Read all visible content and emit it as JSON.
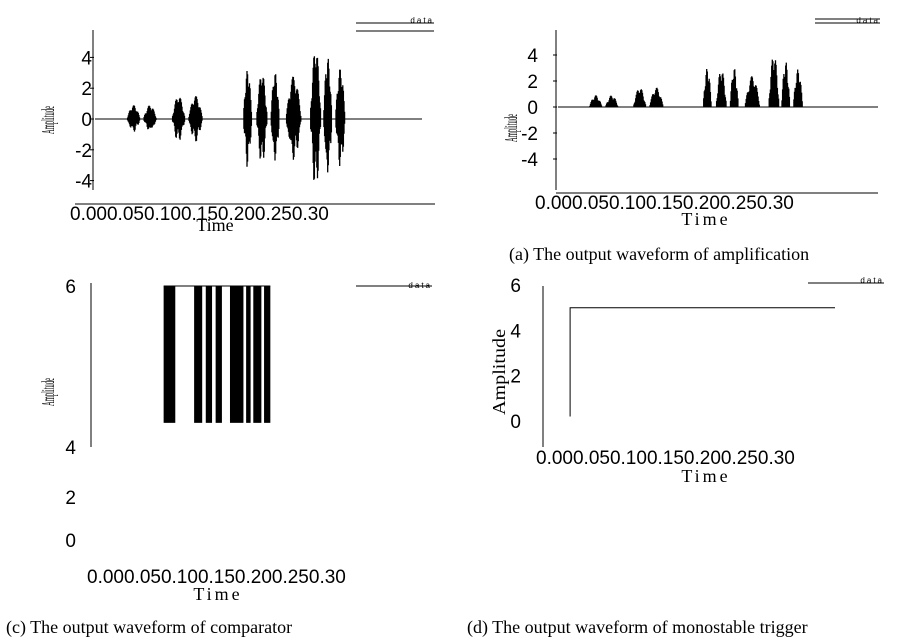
{
  "chart_data": [
    {
      "id": "a-left",
      "type": "line",
      "xlabel": "Time",
      "ylabel": "Amplitude",
      "xtick_text": "0.000.050.100.150.200.250.30",
      "xlim": [
        0,
        0.3
      ],
      "ylim": [
        -5,
        5
      ],
      "yticks": [
        4,
        2,
        0,
        -2,
        -4
      ],
      "ytick_labels": [
        "4",
        "2",
        "0",
        "-2",
        "-4"
      ],
      "legend": "data",
      "legend_position": "top-right",
      "series": [
        {
          "style": "bipolar-bursts",
          "bursts": [
            {
              "x": [
                0.031,
                0.043
              ],
              "amp": 0.9
            },
            {
              "x": [
                0.046,
                0.058
              ],
              "amp": 0.9
            },
            {
              "x": [
                0.072,
                0.084
              ],
              "amp": 1.5
            },
            {
              "x": [
                0.087,
                0.1
              ],
              "amp": 1.5
            },
            {
              "x": [
                0.137,
                0.145
              ],
              "amp": 3.2
            },
            {
              "x": [
                0.149,
                0.159
              ],
              "amp": 3.0
            },
            {
              "x": [
                0.162,
                0.17
              ],
              "amp": 3.0
            },
            {
              "x": [
                0.176,
                0.19
              ],
              "amp": 2.8
            },
            {
              "x": [
                0.198,
                0.208
              ],
              "amp": 4.6
            },
            {
              "x": [
                0.21,
                0.218
              ],
              "amp": 4.0
            },
            {
              "x": [
                0.221,
                0.23
              ],
              "amp": 3.3
            }
          ]
        }
      ]
    },
    {
      "id": "a-right",
      "type": "line",
      "xlabel": "Time",
      "ylabel": "Amplitude",
      "xtick_text": "0.000.050.100.150.200.250.30",
      "xlim": [
        0,
        0.3
      ],
      "ylim": [
        -5,
        5
      ],
      "yticks": [
        4,
        2,
        0,
        -2,
        -4
      ],
      "ytick_labels": [
        "4",
        "2",
        "0",
        "-2",
        "-4"
      ],
      "legend": "data",
      "legend_position": "top-right",
      "series": [
        {
          "style": "rectified-bursts",
          "bursts": [
            {
              "x": [
                0.031,
                0.043
              ],
              "amp": 0.9
            },
            {
              "x": [
                0.046,
                0.058
              ],
              "amp": 0.9
            },
            {
              "x": [
                0.072,
                0.084
              ],
              "amp": 1.5
            },
            {
              "x": [
                0.087,
                0.1
              ],
              "amp": 1.5
            },
            {
              "x": [
                0.137,
                0.145
              ],
              "amp": 3.0
            },
            {
              "x": [
                0.149,
                0.159
              ],
              "amp": 2.9
            },
            {
              "x": [
                0.162,
                0.17
              ],
              "amp": 3.0
            },
            {
              "x": [
                0.176,
                0.19
              ],
              "amp": 2.4
            },
            {
              "x": [
                0.198,
                0.208
              ],
              "amp": 4.1
            },
            {
              "x": [
                0.21,
                0.218
              ],
              "amp": 3.5
            },
            {
              "x": [
                0.221,
                0.23
              ],
              "amp": 2.9
            }
          ]
        }
      ]
    },
    {
      "id": "c",
      "type": "bar",
      "xlabel": "Time",
      "ylabel": "Amplitude",
      "xtick_text": "0.000.050.100.150.200.250.30",
      "xlim": [
        0,
        0.3
      ],
      "ylim": [
        0,
        6
      ],
      "yticks": [
        6,
        4,
        2,
        0
      ],
      "ytick_labels": [
        "6",
        "4",
        "2",
        "0"
      ],
      "legend": "data",
      "legend_position": "top-right",
      "series": [
        {
          "style": "pulses",
          "low": 4.3,
          "high": 6.0,
          "pulses": [
            [
              0.081,
              0.094
            ],
            [
              0.115,
              0.124
            ],
            [
              0.128,
              0.135
            ],
            [
              0.139,
              0.146
            ],
            [
              0.155,
              0.17
            ],
            [
              0.173,
              0.178
            ],
            [
              0.181,
              0.19
            ],
            [
              0.193,
              0.2
            ]
          ]
        }
      ]
    },
    {
      "id": "d",
      "type": "line",
      "xlabel": "Time",
      "ylabel": "Amplitude",
      "xtick_text": "0.000.050.100.150.200.250.30",
      "xlim": [
        0,
        0.3
      ],
      "ylim": [
        0,
        6
      ],
      "yticks": [
        6,
        4,
        2,
        0
      ],
      "ytick_labels": [
        "6",
        "4",
        "2",
        "0"
      ],
      "legend": "data",
      "legend_position": "top-right",
      "series": [
        {
          "style": "step",
          "x": [
            0.026,
            0.026,
            0.3
          ],
          "y": [
            0.2,
            5.0,
            5.0
          ]
        }
      ]
    }
  ],
  "captions": {
    "a": "(a) The output waveform of amplification",
    "c": "(c) The output waveform of comparator",
    "d": "(d) The output waveform of monostable trigger"
  }
}
